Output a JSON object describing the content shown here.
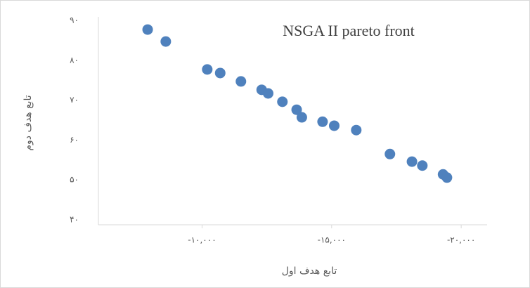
{
  "chart_data": {
    "type": "scatter",
    "title": "NSGA II pareto front",
    "x_label": "تابع هدف اول",
    "y_label": "تابع هدف دوم",
    "series": [
      {
        "color": "#4f81bd",
        "x": [
          -7900,
          -8600,
          -10200,
          -10700,
          -11500,
          -12300,
          -12550,
          -13100,
          -13650,
          -13850,
          -14650,
          -15100,
          -15950,
          -17250,
          -18100,
          -18500,
          -19300,
          -19450
        ],
        "values": [
          87.7,
          84.7,
          77.7,
          76.8,
          74.7,
          72.6,
          71.7,
          69.6,
          67.6,
          65.7,
          64.6,
          63.6,
          62.5,
          56.5,
          54.6,
          53.6,
          51.4,
          50.6
        ]
      }
    ],
    "xlim": [
      -6000,
      -21000
    ],
    "xticks": [
      {
        "value": -10000,
        "label": "-۱۰,۰۰۰"
      },
      {
        "value": -15000,
        "label": "-۱۵,۰۰۰"
      },
      {
        "value": -20000,
        "label": "-۲۰,۰۰۰"
      }
    ],
    "ylim": [
      40,
      90
    ],
    "yticks": [
      {
        "value": 40,
        "label": "۴۰"
      },
      {
        "value": 50,
        "label": "۵۰"
      },
      {
        "value": 60,
        "label": "۶۰"
      },
      {
        "value": 70,
        "label": "۷۰"
      },
      {
        "value": 80,
        "label": "۸۰"
      },
      {
        "value": 90,
        "label": "۹۰"
      }
    ]
  }
}
